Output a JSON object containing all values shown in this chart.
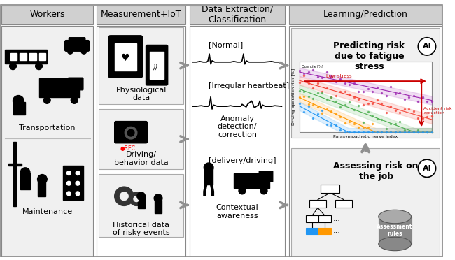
{
  "title_workers": "Workers",
  "title_measurement": "Measurement+IoT",
  "title_extraction": "Data Extraction/\nClassification",
  "title_learning": "Learning/Prediction",
  "label_transportation": "Transportation",
  "label_maintenance": "Maintenance",
  "label_physio": "Physiological\ndata",
  "label_driving": "Driving/\nbehavior data",
  "label_historical": "Historical data\nof risky events",
  "label_normal": "[Normal]",
  "label_irregular": "[Irregular heartbeat]",
  "label_anomaly": "Anomaly\ndetection/\ncorrection",
  "label_delivery": "[delivery/driving]",
  "label_contextual": "Contextual\nawareness",
  "label_predicting": "Predicting risk\ndue to fatigue\nstress",
  "label_assessing": "Assessing risk on\nthe job",
  "label_low_stress": "Low stress",
  "label_accident": "Accident risk\nreduction",
  "label_quantile": "Quantile [%]",
  "label_driving_risk": "Driving operation risk [%]",
  "label_parasympathetic": "Parasympathetic nerve index",
  "label_assessment_rules": "Assessment\nrules",
  "header_bg": "#d0d0d0",
  "panel_bg": "#f0f0f0",
  "white": "#ffffff",
  "black": "#000000",
  "arrow_gray": "#909090",
  "red_arrow": "#cc0000",
  "blue_color": "#2196F3",
  "orange_color": "#FF9800",
  "plot_colors": [
    "#2196F3",
    "#FF9800",
    "#4CAF50",
    "#FF5722",
    "#9C27B0"
  ],
  "plot_fill_colors": [
    "#BBDEFB",
    "#FFE0B2",
    "#C8E6C9",
    "#FFCCBC",
    "#E1BEE7"
  ]
}
